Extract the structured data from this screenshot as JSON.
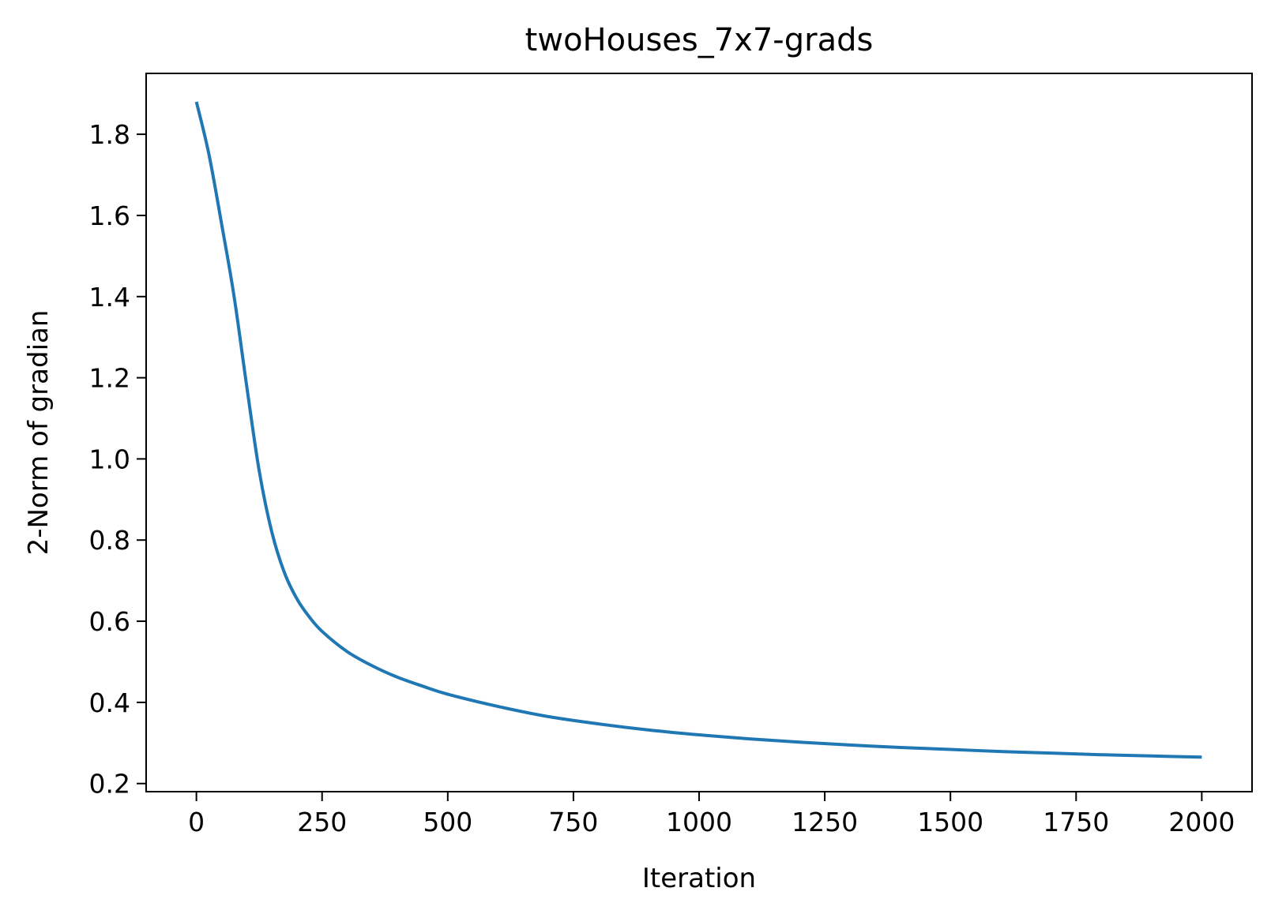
{
  "chart_data": {
    "type": "line",
    "title": "twoHouses_7x7-grads",
    "xlabel": "Iteration",
    "ylabel": "2-Norm of gradian",
    "xlim": [
      -100,
      2100
    ],
    "ylim": [
      0.18,
      1.95
    ],
    "xticks": [
      0,
      250,
      500,
      750,
      1000,
      1250,
      1500,
      1750,
      2000
    ],
    "yticks": [
      0.2,
      0.4,
      0.6,
      0.8,
      1.0,
      1.2,
      1.4,
      1.6,
      1.8
    ],
    "xtick_labels": [
      "0",
      "250",
      "500",
      "750",
      "1000",
      "1250",
      "1500",
      "1750",
      "2000"
    ],
    "ytick_labels": [
      "0.2",
      "0.4",
      "0.6",
      "0.8",
      "1.0",
      "1.2",
      "1.4",
      "1.6",
      "1.8"
    ],
    "grid": false,
    "series": [
      {
        "color": "#1f77b4",
        "x": [
          0,
          25,
          50,
          75,
          100,
          125,
          150,
          175,
          200,
          225,
          250,
          300,
          350,
          400,
          450,
          500,
          600,
          700,
          800,
          900,
          1000,
          1100,
          1200,
          1300,
          1400,
          1500,
          1600,
          1700,
          1800,
          1900,
          2000
        ],
        "y": [
          1.88,
          1.75,
          1.58,
          1.4,
          1.18,
          0.97,
          0.82,
          0.72,
          0.655,
          0.61,
          0.575,
          0.525,
          0.49,
          0.462,
          0.44,
          0.42,
          0.39,
          0.365,
          0.347,
          0.332,
          0.32,
          0.31,
          0.302,
          0.295,
          0.289,
          0.284,
          0.279,
          0.275,
          0.271,
          0.268,
          0.265
        ]
      }
    ]
  }
}
